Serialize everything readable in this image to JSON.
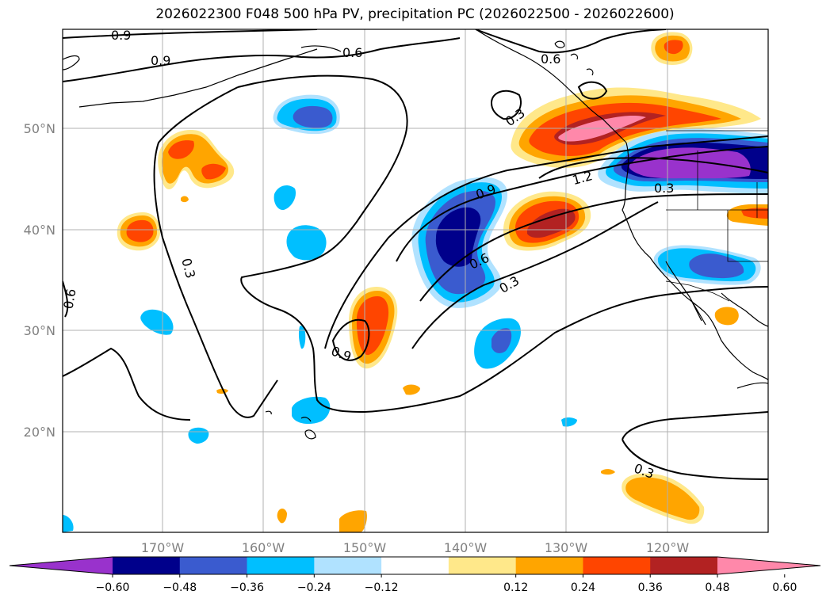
{
  "title": "2026022300 F048 500 hPa PV, precipitation PC (2026022500 - 2026022600)",
  "map": {
    "lat_labels": [
      "50°N",
      "40°N",
      "30°N",
      "20°N"
    ],
    "lon_labels": [
      "170°W",
      "160°W",
      "150°W",
      "140°W",
      "130°W",
      "120°W"
    ],
    "pv_contour_labels": [
      "0.9",
      "0.9",
      "0.6",
      "0.6",
      "0.3",
      "0.3",
      "0.6",
      "0.9",
      "1.2",
      "0.3",
      "0.6",
      "0.3",
      "0.9",
      "0.3"
    ]
  },
  "colorbar": {
    "ticks": [
      "−0.60",
      "−0.48",
      "−0.36",
      "−0.24",
      "−0.12",
      "0.12",
      "0.24",
      "0.36",
      "0.48",
      "0.60"
    ],
    "colors": [
      "#9932cc",
      "#00008b",
      "#3a5bcf",
      "#00bfff",
      "#b0e2ff",
      "#ffffff",
      "#ffe88a",
      "#ffa500",
      "#ff4500",
      "#b22222",
      "#ff88aa"
    ]
  },
  "colors": {
    "neg_strong": "#00008b",
    "neg_mid": "#3a5bcf",
    "neg_light": "#00bfff",
    "neg_pale": "#b0e2ff",
    "neg_extreme": "#9932cc",
    "pos_pale": "#ffe88a",
    "pos_light": "#ffa500",
    "pos_mid": "#ff4500",
    "pos_strong": "#b22222",
    "pos_extreme": "#ff88aa"
  }
}
